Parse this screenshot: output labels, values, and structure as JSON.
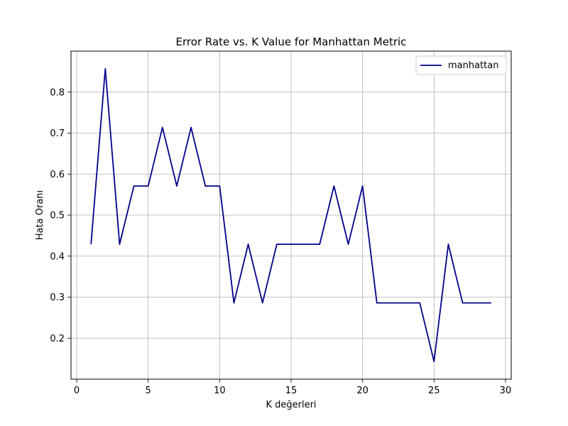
{
  "chart_data": {
    "type": "line",
    "title": "Error Rate vs. K Value for Manhattan Metric",
    "xlabel": "K değerleri",
    "ylabel": "Hata Oranı",
    "xlim": [
      -0.4,
      30.4
    ],
    "ylim": [
      0.1,
      0.9
    ],
    "xticks": [
      0,
      5,
      10,
      15,
      20,
      25,
      30
    ],
    "yticks": [
      0.2,
      0.3,
      0.4,
      0.5,
      0.6,
      0.7,
      0.8
    ],
    "xtick_labels": [
      "0",
      "5",
      "10",
      "15",
      "20",
      "25",
      "30"
    ],
    "ytick_labels": [
      "0.2",
      "0.3",
      "0.4",
      "0.5",
      "0.6",
      "0.7",
      "0.8"
    ],
    "grid": true,
    "legend_position": "top-right",
    "series": [
      {
        "name": "manhattan",
        "color": "#00008b",
        "x": [
          1,
          2,
          3,
          4,
          5,
          6,
          7,
          8,
          9,
          10,
          11,
          12,
          13,
          14,
          15,
          16,
          17,
          18,
          19,
          20,
          21,
          22,
          23,
          24,
          25,
          26,
          27,
          28,
          29
        ],
        "y": [
          0.429,
          0.857,
          0.429,
          0.571,
          0.571,
          0.714,
          0.571,
          0.714,
          0.571,
          0.571,
          0.286,
          0.429,
          0.286,
          0.429,
          0.429,
          0.429,
          0.429,
          0.571,
          0.429,
          0.571,
          0.286,
          0.286,
          0.286,
          0.286,
          0.143,
          0.429,
          0.286,
          0.286,
          0.286
        ]
      }
    ]
  }
}
